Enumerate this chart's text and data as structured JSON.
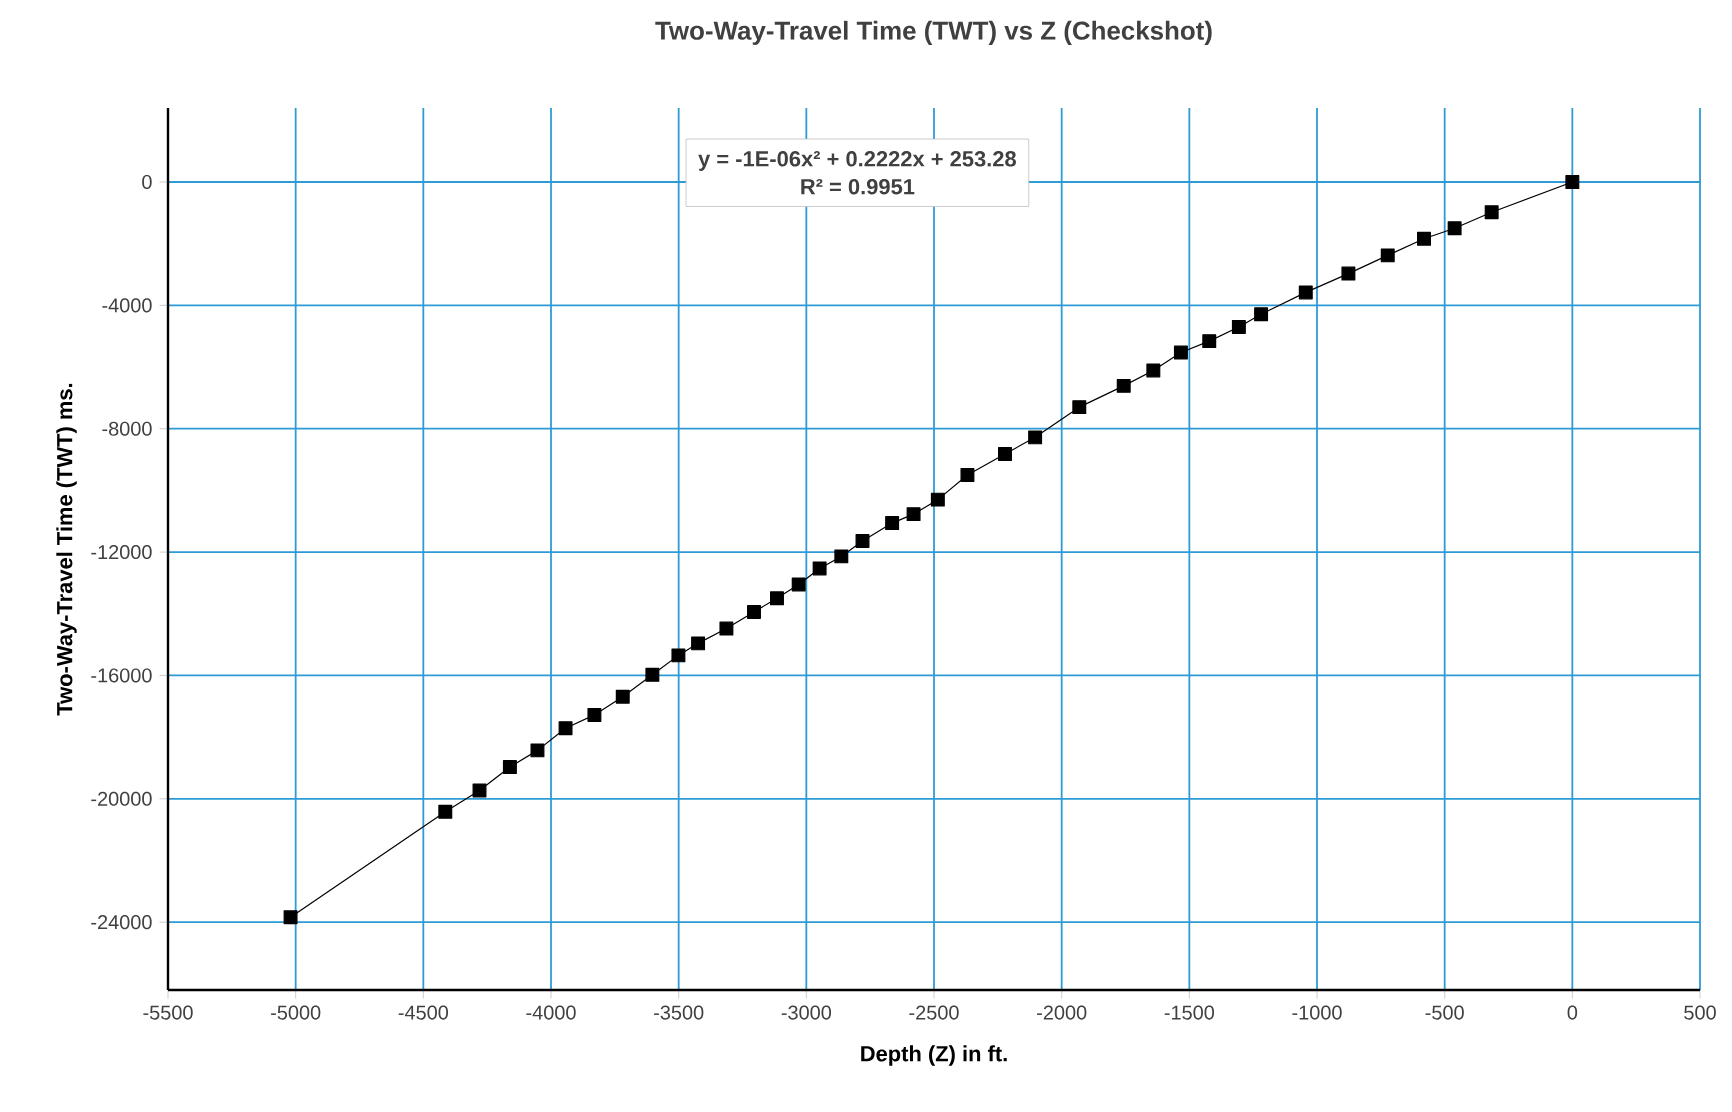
{
  "chart_data": {
    "type": "line",
    "title": "Two-Way-Travel Time (TWT)  vs Z (Checkshot)",
    "xlabel": "Depth (Z) in ft.",
    "ylabel": "Two-Way-Travel Time (TWT) ms.",
    "x": [
      -5020,
      -4414,
      -4280,
      -4161,
      -4053,
      -3943,
      -3830,
      -3719,
      -3603,
      -3501,
      -3424,
      -3313,
      -3205,
      -3115,
      -3030,
      -2948,
      -2863,
      -2780,
      -2664,
      -2580,
      -2485,
      -2369,
      -2222,
      -2104,
      -1931,
      -1757,
      -1641,
      -1533,
      -1422,
      -1306,
      -1219,
      -1044,
      -877,
      -723,
      -581,
      -461,
      -316,
      0
    ],
    "values": [
      -23840,
      -20420,
      -19730,
      -18970,
      -18430,
      -17710,
      -17280,
      -16690,
      -15980,
      -15350,
      -14960,
      -14480,
      -13940,
      -13500,
      -13050,
      -12530,
      -12140,
      -11640,
      -11060,
      -10770,
      -10300,
      -9500,
      -8820,
      -8280,
      -7300,
      -6610,
      -6110,
      -5530,
      -5160,
      -4700,
      -4290,
      -3580,
      -2970,
      -2380,
      -1840,
      -1500,
      -980,
      0
    ],
    "color": "#000000",
    "marker": "square",
    "line_style": "solid",
    "xlim": [
      -5500,
      500
    ],
    "xticks": [
      -5500,
      -5000,
      -4500,
      -4000,
      -3500,
      -3000,
      -2500,
      -2000,
      -1500,
      -1000,
      -500,
      0,
      500
    ],
    "ylim": [
      -26200,
      2400
    ],
    "yticks": [
      -24000,
      -20000,
      -16000,
      -12000,
      -8000,
      -4000,
      0
    ],
    "grid": true,
    "annotations": [
      "y = -1E-06x² + 0.2222x + 253.28",
      "R² = 0.9951"
    ]
  }
}
